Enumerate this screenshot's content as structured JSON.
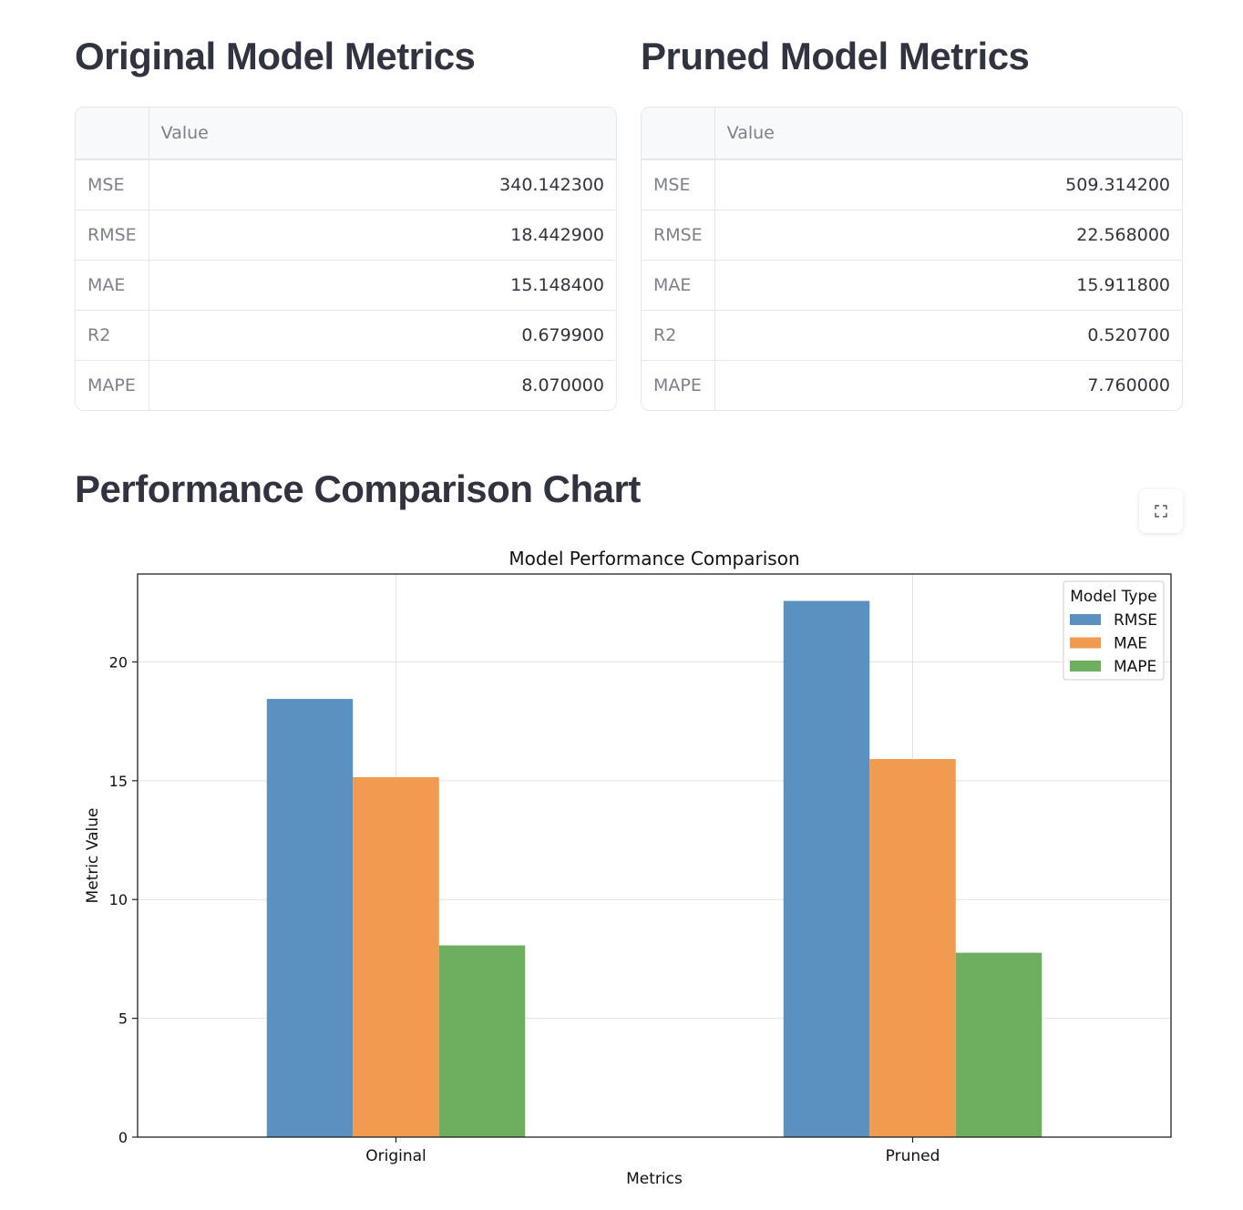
{
  "original": {
    "title": "Original Model Metrics",
    "column_header": "Value",
    "rows": [
      {
        "metric": "MSE",
        "value": "340.142300"
      },
      {
        "metric": "RMSE",
        "value": "18.442900"
      },
      {
        "metric": "MAE",
        "value": "15.148400"
      },
      {
        "metric": "R2",
        "value": "0.679900"
      },
      {
        "metric": "MAPE",
        "value": "8.070000"
      }
    ]
  },
  "pruned": {
    "title": "Pruned Model Metrics",
    "column_header": "Value",
    "rows": [
      {
        "metric": "MSE",
        "value": "509.314200"
      },
      {
        "metric": "RMSE",
        "value": "22.568000"
      },
      {
        "metric": "MAE",
        "value": "15.911800"
      },
      {
        "metric": "R2",
        "value": "0.520700"
      },
      {
        "metric": "MAPE",
        "value": "7.760000"
      }
    ]
  },
  "chart_section": {
    "title": "Performance Comparison Chart",
    "expand_icon": "fullscreen-expand-icon"
  },
  "chart_data": {
    "type": "bar",
    "title": "Model Performance Comparison",
    "xlabel": "Metrics",
    "ylabel": "Metric Value",
    "categories": [
      "Original",
      "Pruned"
    ],
    "series": [
      {
        "name": "RMSE",
        "color": "#5b91c1",
        "values": [
          18.4429,
          22.568
        ]
      },
      {
        "name": "MAE",
        "color": "#f09b4f",
        "values": [
          15.1484,
          15.9118
        ]
      },
      {
        "name": "MAPE",
        "color": "#6daf5f",
        "values": [
          8.07,
          7.76
        ]
      }
    ],
    "ylim": [
      0,
      23.7
    ],
    "yticks": [
      "0",
      "5",
      "10",
      "15",
      "20"
    ],
    "grid": true,
    "legend": {
      "title": "Model Type",
      "placement": "top-right"
    }
  }
}
